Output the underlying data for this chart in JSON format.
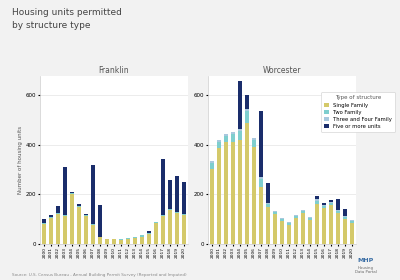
{
  "title": "Housing units permitted\nby structure type",
  "ylabel": "Number of housing units",
  "source": "Source: U.S. Census Bureau - Annual Building Permit Survey (Reported and Imputed)",
  "colors": {
    "single_family": "#d4c96a",
    "two_family": "#7ecece",
    "three_four_family": "#a8c8de",
    "five_or_more": "#1a2d6b"
  },
  "years": [
    2000,
    2001,
    2002,
    2003,
    2004,
    2005,
    2006,
    2007,
    2008,
    2009,
    2010,
    2011,
    2012,
    2013,
    2014,
    2015,
    2016,
    2017,
    2018,
    2019,
    2020
  ],
  "franklin": {
    "title": "Franklin",
    "single_family": [
      80,
      105,
      120,
      110,
      200,
      150,
      110,
      75,
      28,
      18,
      18,
      14,
      18,
      22,
      28,
      38,
      85,
      110,
      135,
      125,
      115
    ],
    "two_family": [
      4,
      4,
      4,
      4,
      4,
      4,
      4,
      4,
      0,
      0,
      0,
      4,
      4,
      4,
      8,
      4,
      4,
      4,
      4,
      4,
      4
    ],
    "three_four_family": [
      0,
      0,
      0,
      0,
      0,
      0,
      0,
      0,
      0,
      0,
      0,
      0,
      0,
      0,
      0,
      0,
      0,
      0,
      0,
      0,
      0
    ],
    "five_or_more": [
      15,
      5,
      30,
      195,
      5,
      5,
      5,
      240,
      130,
      0,
      0,
      0,
      0,
      0,
      0,
      10,
      0,
      230,
      120,
      145,
      130
    ]
  },
  "worcester": {
    "title": "Worcester",
    "single_family": [
      300,
      385,
      410,
      410,
      420,
      490,
      390,
      230,
      150,
      120,
      90,
      75,
      105,
      125,
      95,
      160,
      145,
      155,
      125,
      100,
      85
    ],
    "two_family": [
      25,
      25,
      25,
      35,
      35,
      45,
      28,
      30,
      12,
      8,
      8,
      8,
      8,
      8,
      8,
      12,
      8,
      8,
      8,
      8,
      8
    ],
    "three_four_family": [
      8,
      8,
      8,
      8,
      8,
      8,
      8,
      8,
      4,
      4,
      4,
      4,
      4,
      4,
      4,
      8,
      4,
      4,
      4,
      4,
      4
    ],
    "five_or_more": [
      0,
      0,
      0,
      0,
      195,
      60,
      0,
      270,
      80,
      0,
      0,
      0,
      0,
      0,
      0,
      12,
      8,
      8,
      45,
      28,
      0
    ]
  },
  "ylim": [
    0,
    680
  ],
  "yticks": [
    0,
    200,
    400,
    600
  ],
  "background_color": "#f2f2f2",
  "plot_bg": "#ffffff"
}
